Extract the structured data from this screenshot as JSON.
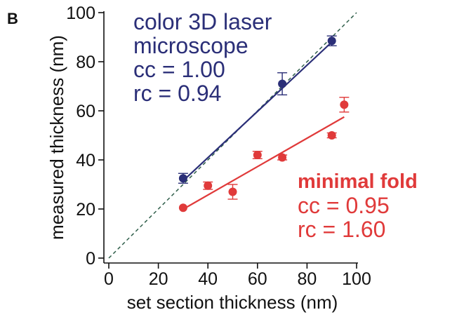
{
  "panel_label": "B",
  "colors": {
    "microscope": "#2b2f78",
    "fold": "#e03a3a",
    "identity": "#2f5e4a",
    "axis": "#111111"
  },
  "annotations": {
    "microscope": {
      "line1": "color 3D laser",
      "line2": "microscope",
      "line3": "cc = 1.00",
      "line4": "rc = 0.94"
    },
    "fold": {
      "line1": "minimal fold",
      "line2": "cc = 0.95",
      "line3": "rc = 1.60"
    }
  },
  "chart_data": {
    "type": "scatter",
    "xlabel": "set section thickness (nm)",
    "ylabel": "measured thickness (nm)",
    "xlim": [
      0,
      100
    ],
    "ylim": [
      0,
      100
    ],
    "x_ticks": [
      0,
      20,
      40,
      60,
      80,
      100
    ],
    "y_ticks": [
      0,
      20,
      40,
      60,
      80,
      100
    ],
    "grid": false,
    "identity_line": {
      "style": "dashed",
      "from": [
        0,
        0
      ],
      "to": [
        100,
        100
      ]
    },
    "series": [
      {
        "key": "microscope",
        "points": [
          {
            "x": 30,
            "y": 32.5,
            "err": 2
          },
          {
            "x": 70,
            "y": 71,
            "err": 4.5
          },
          {
            "x": 90,
            "y": 88.5,
            "err": 2
          }
        ],
        "fit": {
          "from": [
            30,
            31.5
          ],
          "to": [
            90,
            88
          ]
        }
      },
      {
        "key": "fold",
        "points": [
          {
            "x": 30,
            "y": 20.5,
            "err": 0
          },
          {
            "x": 40,
            "y": 29.5,
            "err": 1.5
          },
          {
            "x": 50,
            "y": 27,
            "err": 3
          },
          {
            "x": 60,
            "y": 42,
            "err": 1.5
          },
          {
            "x": 70,
            "y": 41,
            "err": 1
          },
          {
            "x": 90,
            "y": 50,
            "err": 1
          },
          {
            "x": 95,
            "y": 62.5,
            "err": 3
          }
        ],
        "fit": {
          "from": [
            31,
            20.5
          ],
          "to": [
            95,
            57.5
          ]
        }
      }
    ]
  }
}
